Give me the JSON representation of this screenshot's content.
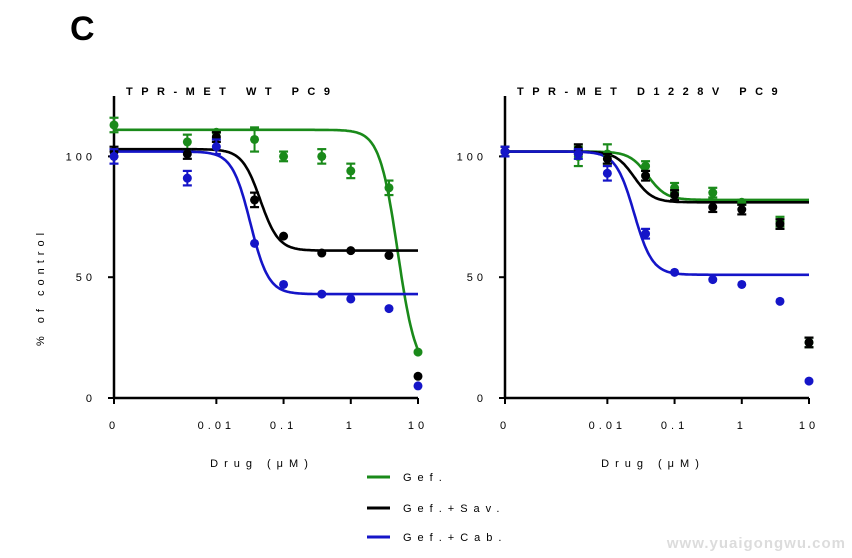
{
  "figure": {
    "panel_letter": "C",
    "watermark": "www.yuaigongwu.com",
    "legend": [
      {
        "label": "Gef.",
        "color": "#1a8a1a"
      },
      {
        "label": "Gef.+Sav.",
        "color": "#000000"
      },
      {
        "label": "Gef.+Cab.",
        "color": "#1515c8"
      }
    ]
  },
  "chart_data": [
    {
      "type": "scatter",
      "title": "TPR-MET WT PC9",
      "xlabel": "Drug (μM)",
      "ylabel": "% of control",
      "x_ticks": [
        "0",
        "0.01",
        "0.1",
        "1",
        "10"
      ],
      "y_ticks": [
        "0",
        "50",
        "100"
      ],
      "xlim": [
        0.0003,
        10
      ],
      "ylim": [
        0,
        125
      ],
      "x_scale": "log (first tick is zero)",
      "series": [
        {
          "name": "Gef.",
          "color": "#1a8a1a",
          "x": [
            0,
            0.0037,
            0.01,
            0.037,
            0.1,
            0.37,
            1,
            3.7,
            10
          ],
          "y": [
            113,
            106,
            110,
            107,
            100,
            100,
            94,
            87,
            19
          ],
          "err": [
            3,
            3,
            0,
            5,
            2,
            3,
            3,
            3,
            0
          ],
          "fit": {
            "top": 111,
            "bottom": 10,
            "ec50": 5
          }
        },
        {
          "name": "Gef.+Sav.",
          "color": "#000000",
          "x": [
            0,
            0.0037,
            0.01,
            0.037,
            0.1,
            0.37,
            1,
            3.7,
            10
          ],
          "y": [
            102,
            101,
            108,
            82,
            67,
            60,
            61,
            59,
            9
          ],
          "err": [
            2,
            2,
            2,
            3,
            0,
            0,
            0,
            0,
            0
          ],
          "fit": {
            "top": 103,
            "bottom": 61,
            "ec50": 0.045
          }
        },
        {
          "name": "Gef.+Cab.",
          "color": "#1515c8",
          "x": [
            0,
            0.0037,
            0.01,
            0.037,
            0.1,
            0.37,
            1,
            3.7,
            10
          ],
          "y": [
            100,
            91,
            104,
            64,
            47,
            43,
            41,
            37,
            5
          ],
          "err": [
            3,
            3,
            3,
            0,
            0,
            0,
            0,
            0,
            0
          ],
          "fit": {
            "top": 102,
            "bottom": 43,
            "ec50": 0.032
          }
        }
      ]
    },
    {
      "type": "scatter",
      "title": "TPR-MET D1228V PC9",
      "xlabel": "Drug (μM)",
      "ylabel": "",
      "x_ticks": [
        "0",
        "0.01",
        "0.1",
        "1",
        "10"
      ],
      "y_ticks": [
        "0",
        "50",
        "100"
      ],
      "xlim": [
        0.0003,
        10
      ],
      "ylim": [
        0,
        125
      ],
      "x_scale": "log (first tick is zero)",
      "series": [
        {
          "name": "Gef.",
          "color": "#1a8a1a",
          "x": [
            0,
            0.0037,
            0.01,
            0.037,
            0.1,
            0.37,
            1,
            3.7,
            10
          ],
          "y": [
            102,
            100,
            101,
            96,
            87,
            85,
            81,
            73,
            23
          ],
          "err": [
            2,
            4,
            4,
            2,
            2,
            2,
            1,
            2,
            2
          ],
          "fit": {
            "top": 102,
            "bottom": 82,
            "ec50": 0.04
          }
        },
        {
          "name": "Gef.+Sav.",
          "color": "#000000",
          "x": [
            0,
            0.0037,
            0.01,
            0.037,
            0.1,
            0.37,
            1,
            3.7,
            10
          ],
          "y": [
            102,
            103,
            99,
            92,
            84,
            79,
            78,
            72,
            23
          ],
          "err": [
            2,
            2,
            2,
            2,
            2,
            2,
            2,
            2,
            2
          ],
          "fit": {
            "top": 102,
            "bottom": 81,
            "ec50": 0.025
          }
        },
        {
          "name": "Gef.+Cab.",
          "color": "#1515c8",
          "x": [
            0,
            0.0037,
            0.01,
            0.037,
            0.1,
            0.37,
            1,
            3.7,
            10
          ],
          "y": [
            102,
            101,
            93,
            68,
            52,
            49,
            47,
            40,
            7
          ],
          "err": [
            2,
            2,
            3,
            2,
            0,
            0,
            0,
            0,
            0
          ],
          "fit": {
            "top": 102,
            "bottom": 51,
            "ec50": 0.025
          }
        }
      ]
    }
  ]
}
